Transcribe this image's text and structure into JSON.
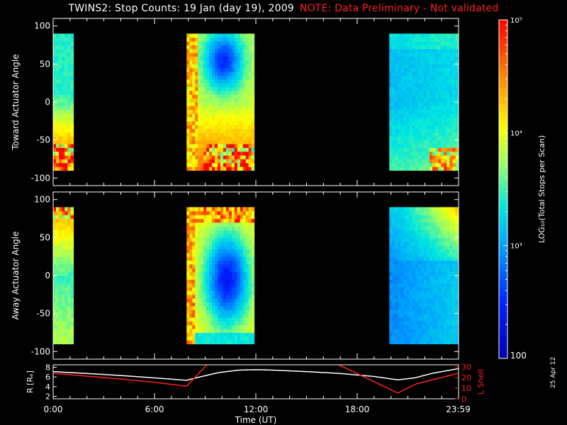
{
  "title": {
    "main": "TWINS2: Stop Counts: 19 Jan (day  19), 2009",
    "note": "NOTE: Data Preliminary - Not validated"
  },
  "print_date": "25 Apr 12",
  "colorbar": {
    "label": "LOG₁₀(Total Stops per Scan)",
    "tick_labels": [
      "10⁵",
      "10⁴",
      "10³",
      "100"
    ],
    "tick_values": [
      100000,
      10000,
      1000,
      100
    ],
    "range": [
      100,
      100000
    ],
    "scale": "log"
  },
  "x_axis": {
    "label": "Time (UT)",
    "tick_labels": [
      "0:00",
      "6:00",
      "12:00",
      "18:00",
      "23:59"
    ],
    "tick_hours": [
      0,
      6,
      12,
      18,
      23.98
    ],
    "range_hours": [
      0,
      24
    ]
  },
  "chart_data": [
    {
      "type": "heatmap",
      "ylabel": "Toward Actuator Angle",
      "ylim": [
        -110,
        110
      ],
      "yticks": [
        "100",
        "50",
        "0",
        "-50",
        "-100"
      ],
      "ytick_values": [
        100,
        50,
        0,
        -50,
        -100
      ],
      "angle_range": [
        -90,
        90
      ],
      "segments": [
        {
          "t_start": 0.0,
          "t_end": 1.2
        },
        {
          "t_start": 7.9,
          "t_end": 11.9
        },
        {
          "t_start": 19.9,
          "t_end": 23.98
        }
      ]
    },
    {
      "type": "heatmap",
      "ylabel": "Away Actuator Angle",
      "ylim": [
        -110,
        110
      ],
      "yticks": [
        "100",
        "50",
        "0",
        "-50",
        "-100"
      ],
      "ytick_values": [
        100,
        50,
        0,
        -50,
        -100
      ],
      "angle_range": [
        -90,
        90
      ],
      "segments": [
        {
          "t_start": 0.0,
          "t_end": 1.2
        },
        {
          "t_start": 7.9,
          "t_end": 11.9
        },
        {
          "t_start": 19.9,
          "t_end": 23.98
        }
      ]
    },
    {
      "type": "line",
      "ylabel_left": "R [Rₑ]",
      "ylabel_right": "L Shell",
      "yticks_left": [
        "8",
        "6",
        "4",
        "2"
      ],
      "ytick_values_left": [
        8,
        6,
        4,
        2
      ],
      "ylim_left": [
        1.5,
        8.5
      ],
      "yticks_right": [
        "30",
        "20",
        "10",
        "0"
      ],
      "ytick_values_right": [
        30,
        20,
        10,
        0
      ],
      "ylim_right": [
        0,
        32
      ],
      "colors": {
        "R": "#ffffff",
        "L": "#ff2020"
      },
      "series": [
        {
          "name": "R [Rₑ]",
          "axis": "left",
          "x": [
            0,
            2,
            4,
            6,
            7.9,
            8.8,
            9.8,
            11,
            12,
            13,
            15,
            17,
            19,
            20.4,
            21.4,
            22.5,
            23.98
          ],
          "y": [
            7.1,
            6.7,
            6.3,
            5.8,
            5.3,
            6.1,
            6.9,
            7.4,
            7.5,
            7.4,
            7.1,
            6.7,
            6.1,
            5.4,
            5.8,
            6.8,
            7.7
          ]
        },
        {
          "name": "L Shell",
          "axis": "right",
          "x": [
            0,
            3,
            6,
            7.9,
            9.1
          ],
          "y": [
            24,
            20,
            15.5,
            11.8,
            32
          ]
        },
        {
          "name": "L Shell",
          "axis": "right",
          "x": [
            16.9,
            20.4,
            21.5,
            23.98
          ],
          "y": [
            32,
            5.5,
            14,
            24
          ]
        }
      ]
    }
  ]
}
